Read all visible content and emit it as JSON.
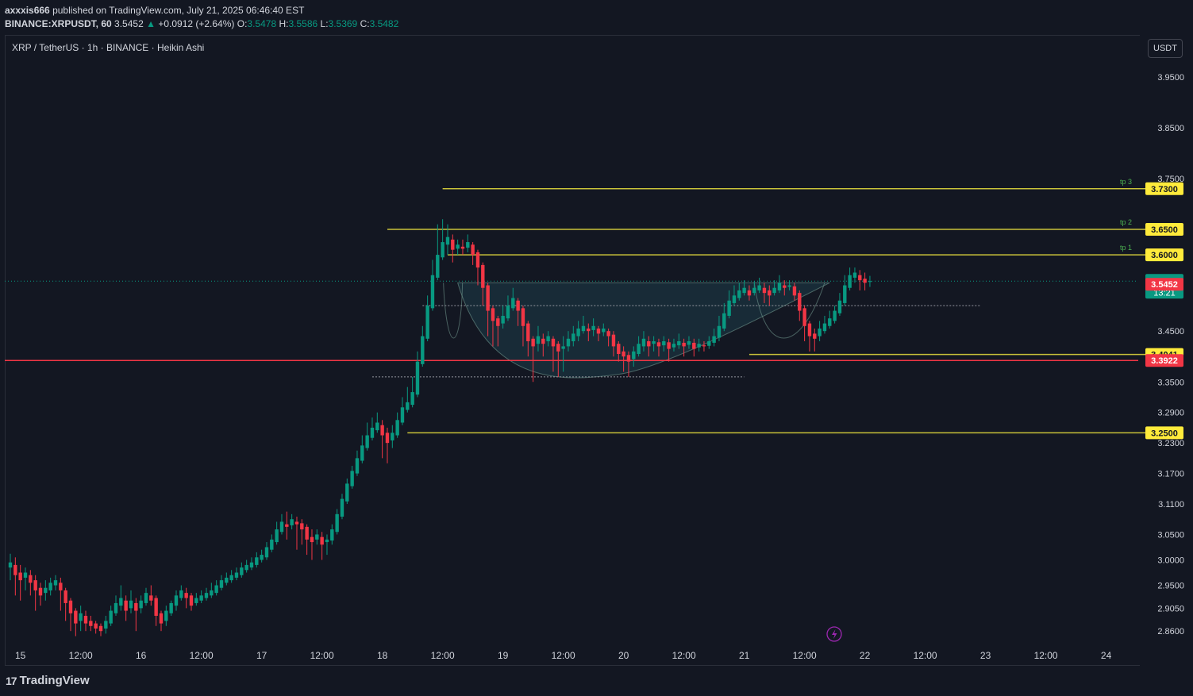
{
  "header": {
    "author": "axxxis666",
    "published_text": "published on TradingView.com, July 21, 2025 06:46:40 EST",
    "symbol": "BINANCE:XRPUSDT, 60",
    "last": "3.5452",
    "change_arrow": "▲",
    "change": "+0.0912 (+2.64%)",
    "o_label": "O:",
    "o": "3.5478",
    "h_label": "H:",
    "h": "3.5586",
    "l_label": "L:",
    "l": "3.5369",
    "c_label": "C:",
    "c": "3.5482"
  },
  "symbol_title": "XRP / TetherUS · 1h · BINANCE · Heikin Ashi",
  "currency_button": "USDT",
  "footer": {
    "logo_mark": "17",
    "brand": "TradingView"
  },
  "lightning_icon": "lightning-icon",
  "colors": {
    "up": "#089981",
    "down": "#f23645",
    "level": "#c9c23a",
    "support": "#f23645",
    "badge_yellow": "#ffeb3b",
    "current": "#089981"
  },
  "chart_data": {
    "type": "candlestick",
    "style": "Heikin Ashi",
    "y_range": [
      2.84,
      4.02
    ],
    "y_ticks": [
      "3.9500",
      "3.8500",
      "3.7500",
      "3.4500",
      "3.3500",
      "3.2900",
      "3.2300",
      "3.1700",
      "3.1100",
      "3.0500",
      "3.0000",
      "2.9500",
      "2.9050",
      "2.8600"
    ],
    "x_ticks": [
      {
        "label": "15",
        "slot": 2
      },
      {
        "label": "12:00",
        "slot": 14
      },
      {
        "label": "16",
        "slot": 26
      },
      {
        "label": "12:00",
        "slot": 38
      },
      {
        "label": "17",
        "slot": 50
      },
      {
        "label": "12:00",
        "slot": 62
      },
      {
        "label": "18",
        "slot": 74
      },
      {
        "label": "12:00",
        "slot": 86
      },
      {
        "label": "19",
        "slot": 98
      },
      {
        "label": "12:00",
        "slot": 110
      },
      {
        "label": "20",
        "slot": 122
      },
      {
        "label": "12:00",
        "slot": 134
      },
      {
        "label": "21",
        "slot": 146
      },
      {
        "label": "12:00",
        "slot": 158
      },
      {
        "label": "22",
        "slot": 170
      },
      {
        "label": "12:00",
        "slot": 182
      },
      {
        "label": "23",
        "slot": 194
      },
      {
        "label": "12:00",
        "slot": 206
      },
      {
        "label": "24",
        "slot": 218
      }
    ],
    "levels": [
      {
        "price": 3.73,
        "label": "3.7300",
        "tag": "tp 3",
        "from_slot": 86,
        "color": "#c9c23a"
      },
      {
        "price": 3.65,
        "label": "3.6500",
        "tag": "tp 2",
        "from_slot": 75,
        "color": "#c9c23a"
      },
      {
        "price": 3.6,
        "label": "3.6000",
        "tag": "tp 1",
        "from_slot": 87,
        "color": "#c9c23a"
      },
      {
        "price": 3.4041,
        "label": "3.4041",
        "tag": "",
        "from_slot": 147,
        "color": "#c9c23a"
      },
      {
        "price": 3.25,
        "label": "3.2500",
        "tag": "",
        "from_slot": 79,
        "color": "#c9c23a"
      }
    ],
    "support_line": {
      "price": 3.3922,
      "label": "3.3922",
      "color": "#f23645"
    },
    "current_price": {
      "price": 3.5482,
      "label": "3.5482",
      "countdown": "13:21"
    },
    "last_close": {
      "price": 3.5452,
      "label": "3.5452"
    },
    "dotted_lines": [
      {
        "price": 3.5,
        "from_slot": 82,
        "to_slot": 193
      },
      {
        "price": 3.36,
        "from_slot": 72,
        "to_slot": 146
      }
    ],
    "cup": {
      "rim_price": 3.545,
      "left_slot": 89,
      "right_slot": 163,
      "bottom_price": 3.365,
      "bottom_slot": 121
    },
    "candles": [
      [
        2.985,
        2.995,
        3.012,
        2.96
      ],
      [
        2.99,
        2.97,
        3.005,
        2.93
      ],
      [
        2.975,
        2.96,
        2.99,
        2.92
      ],
      [
        2.965,
        2.975,
        2.985,
        2.94
      ],
      [
        2.97,
        2.955,
        2.98,
        2.93
      ],
      [
        2.96,
        2.94,
        2.97,
        2.9
      ],
      [
        2.945,
        2.93,
        2.955,
        2.91
      ],
      [
        2.935,
        2.945,
        2.96,
        2.92
      ],
      [
        2.94,
        2.955,
        2.965,
        2.93
      ],
      [
        2.95,
        2.96,
        2.97,
        2.94
      ],
      [
        2.955,
        2.94,
        2.965,
        2.9
      ],
      [
        2.94,
        2.915,
        2.945,
        2.88
      ],
      [
        2.92,
        2.895,
        2.925,
        2.86
      ],
      [
        2.9,
        2.875,
        2.905,
        2.85
      ],
      [
        2.88,
        2.895,
        2.91,
        2.86
      ],
      [
        2.89,
        2.875,
        2.9,
        2.86
      ],
      [
        2.88,
        2.87,
        2.89,
        2.86
      ],
      [
        2.875,
        2.865,
        2.88,
        2.855
      ],
      [
        2.87,
        2.86,
        2.875,
        2.85
      ],
      [
        2.865,
        2.88,
        2.89,
        2.855
      ],
      [
        2.875,
        2.9,
        2.91,
        2.87
      ],
      [
        2.895,
        2.915,
        2.93,
        2.89
      ],
      [
        2.91,
        2.925,
        2.95,
        2.9
      ],
      [
        2.92,
        2.9,
        2.93,
        2.88
      ],
      [
        2.905,
        2.92,
        2.94,
        2.895
      ],
      [
        2.915,
        2.9,
        2.925,
        2.86
      ],
      [
        2.905,
        2.92,
        2.93,
        2.895
      ],
      [
        2.915,
        2.935,
        2.945,
        2.91
      ],
      [
        2.93,
        2.92,
        2.95,
        2.91
      ],
      [
        2.925,
        2.89,
        2.93,
        2.87
      ],
      [
        2.895,
        2.875,
        2.9,
        2.86
      ],
      [
        2.88,
        2.9,
        2.91,
        2.87
      ],
      [
        2.895,
        2.915,
        2.92,
        2.89
      ],
      [
        2.91,
        2.93,
        2.94,
        2.9
      ],
      [
        2.925,
        2.94,
        2.95,
        2.92
      ],
      [
        2.935,
        2.925,
        2.945,
        2.905
      ],
      [
        2.93,
        2.91,
        2.935,
        2.9
      ],
      [
        2.915,
        2.925,
        2.935,
        2.91
      ],
      [
        2.92,
        2.93,
        2.94,
        2.915
      ],
      [
        2.925,
        2.935,
        2.945,
        2.92
      ],
      [
        2.93,
        2.94,
        2.955,
        2.925
      ],
      [
        2.935,
        2.95,
        2.96,
        2.93
      ],
      [
        2.945,
        2.96,
        2.97,
        2.94
      ],
      [
        2.955,
        2.965,
        2.975,
        2.95
      ],
      [
        2.96,
        2.97,
        2.98,
        2.955
      ],
      [
        2.965,
        2.975,
        2.985,
        2.96
      ],
      [
        2.97,
        2.985,
        2.995,
        2.965
      ],
      [
        2.98,
        2.99,
        3.0,
        2.975
      ],
      [
        2.985,
        2.995,
        3.005,
        2.98
      ],
      [
        2.99,
        3.005,
        3.015,
        2.985
      ],
      [
        3.0,
        3.01,
        3.02,
        2.995
      ],
      [
        3.005,
        3.025,
        3.035,
        3.0
      ],
      [
        3.02,
        3.04,
        3.05,
        3.015
      ],
      [
        3.035,
        3.06,
        3.075,
        3.03
      ],
      [
        3.055,
        3.075,
        3.09,
        3.05
      ],
      [
        3.07,
        3.065,
        3.095,
        3.04
      ],
      [
        3.068,
        3.08,
        3.09,
        3.06
      ],
      [
        3.075,
        3.07,
        3.085,
        3.02
      ],
      [
        3.072,
        3.06,
        3.08,
        3.03
      ],
      [
        3.065,
        3.04,
        3.07,
        3.01
      ],
      [
        3.045,
        3.035,
        3.06,
        3.0
      ],
      [
        3.04,
        3.05,
        3.06,
        3.03
      ],
      [
        3.045,
        3.03,
        3.055,
        3.0
      ],
      [
        3.035,
        3.04,
        3.05,
        3.01
      ],
      [
        3.038,
        3.06,
        3.07,
        3.03
      ],
      [
        3.055,
        3.09,
        3.1,
        3.05
      ],
      [
        3.085,
        3.12,
        3.13,
        3.08
      ],
      [
        3.115,
        3.15,
        3.16,
        3.11
      ],
      [
        3.145,
        3.175,
        3.185,
        3.14
      ],
      [
        3.17,
        3.2,
        3.215,
        3.165
      ],
      [
        3.195,
        3.225,
        3.245,
        3.19
      ],
      [
        3.22,
        3.245,
        3.27,
        3.215
      ],
      [
        3.24,
        3.26,
        3.28,
        3.235
      ],
      [
        3.255,
        3.27,
        3.29,
        3.25
      ],
      [
        3.265,
        3.245,
        3.275,
        3.2
      ],
      [
        3.25,
        3.23,
        3.26,
        3.19
      ],
      [
        3.235,
        3.25,
        3.265,
        3.22
      ],
      [
        3.245,
        3.275,
        3.29,
        3.24
      ],
      [
        3.27,
        3.3,
        3.32,
        3.265
      ],
      [
        3.295,
        3.31,
        3.34,
        3.29
      ],
      [
        3.305,
        3.33,
        3.36,
        3.3
      ],
      [
        3.325,
        3.39,
        3.41,
        3.32
      ],
      [
        3.385,
        3.44,
        3.46,
        3.38
      ],
      [
        3.435,
        3.5,
        3.52,
        3.43
      ],
      [
        3.495,
        3.56,
        3.59,
        3.49
      ],
      [
        3.555,
        3.6,
        3.66,
        3.55
      ],
      [
        3.595,
        3.625,
        3.67,
        3.59
      ],
      [
        3.62,
        3.635,
        3.66,
        3.6
      ],
      [
        3.63,
        3.61,
        3.64,
        3.585
      ],
      [
        3.612,
        3.62,
        3.63,
        3.6
      ],
      [
        3.616,
        3.612,
        3.63,
        3.6
      ],
      [
        3.614,
        3.625,
        3.64,
        3.605
      ],
      [
        3.62,
        3.6,
        3.625,
        3.58
      ],
      [
        3.605,
        3.575,
        3.61,
        3.54
      ],
      [
        3.58,
        3.535,
        3.585,
        3.5
      ],
      [
        3.54,
        3.49,
        3.545,
        3.44
      ],
      [
        3.495,
        3.47,
        3.5,
        3.42
      ],
      [
        3.475,
        3.46,
        3.48,
        3.42
      ],
      [
        3.465,
        3.48,
        3.5,
        3.455
      ],
      [
        3.475,
        3.5,
        3.52,
        3.47
      ],
      [
        3.495,
        3.515,
        3.535,
        3.49
      ],
      [
        3.51,
        3.49,
        3.515,
        3.46
      ],
      [
        3.495,
        3.46,
        3.5,
        3.42
      ],
      [
        3.465,
        3.43,
        3.47,
        3.4
      ],
      [
        3.435,
        3.42,
        3.44,
        3.35
      ],
      [
        3.425,
        3.44,
        3.46,
        3.41
      ],
      [
        3.435,
        3.425,
        3.445,
        3.4
      ],
      [
        3.43,
        3.44,
        3.45,
        3.42
      ],
      [
        3.435,
        3.42,
        3.44,
        3.37
      ],
      [
        3.425,
        3.41,
        3.43,
        3.36
      ],
      [
        3.415,
        3.42,
        3.44,
        3.37
      ],
      [
        3.42,
        3.435,
        3.45,
        3.41
      ],
      [
        3.43,
        3.445,
        3.46,
        3.42
      ],
      [
        3.44,
        3.455,
        3.47,
        3.43
      ],
      [
        3.45,
        3.46,
        3.48,
        3.445
      ],
      [
        3.455,
        3.45,
        3.465,
        3.43
      ],
      [
        3.452,
        3.46,
        3.475,
        3.44
      ],
      [
        3.455,
        3.445,
        3.46,
        3.43
      ],
      [
        3.448,
        3.455,
        3.465,
        3.44
      ],
      [
        3.45,
        3.44,
        3.455,
        3.42
      ],
      [
        3.443,
        3.42,
        3.45,
        3.4
      ],
      [
        3.425,
        3.405,
        3.43,
        3.39
      ],
      [
        3.41,
        3.4,
        3.42,
        3.37
      ],
      [
        3.403,
        3.39,
        3.41,
        3.36
      ],
      [
        3.395,
        3.41,
        3.42,
        3.38
      ],
      [
        3.405,
        3.425,
        3.44,
        3.4
      ],
      [
        3.42,
        3.435,
        3.45,
        3.41
      ],
      [
        3.43,
        3.42,
        3.44,
        3.4
      ],
      [
        3.425,
        3.43,
        3.44,
        3.41
      ],
      [
        3.428,
        3.42,
        3.435,
        3.4
      ],
      [
        3.422,
        3.43,
        3.44,
        3.41
      ],
      [
        3.428,
        3.415,
        3.435,
        3.39
      ],
      [
        3.418,
        3.425,
        3.435,
        3.41
      ],
      [
        3.422,
        3.43,
        3.445,
        3.415
      ],
      [
        3.427,
        3.42,
        3.435,
        3.4
      ],
      [
        3.423,
        3.43,
        3.44,
        3.415
      ],
      [
        3.427,
        3.415,
        3.435,
        3.4
      ],
      [
        3.418,
        3.425,
        3.435,
        3.41
      ],
      [
        3.422,
        3.42,
        3.43,
        3.41
      ],
      [
        3.421,
        3.43,
        3.44,
        3.415
      ],
      [
        3.427,
        3.44,
        3.455,
        3.42
      ],
      [
        3.437,
        3.46,
        3.48,
        3.43
      ],
      [
        3.455,
        3.485,
        3.505,
        3.45
      ],
      [
        3.48,
        3.51,
        3.53,
        3.475
      ],
      [
        3.505,
        3.52,
        3.54,
        3.5
      ],
      [
        3.515,
        3.53,
        3.545,
        3.51
      ],
      [
        3.525,
        3.535,
        3.55,
        3.52
      ],
      [
        3.53,
        3.52,
        3.54,
        3.51
      ],
      [
        3.525,
        3.535,
        3.548,
        3.52
      ],
      [
        3.53,
        3.54,
        3.555,
        3.525
      ],
      [
        3.535,
        3.525,
        3.545,
        3.505
      ],
      [
        3.53,
        3.52,
        3.54,
        3.5
      ],
      [
        3.525,
        3.535,
        3.55,
        3.52
      ],
      [
        3.53,
        3.545,
        3.56,
        3.525
      ],
      [
        3.54,
        3.535,
        3.55,
        3.52
      ],
      [
        3.537,
        3.54,
        3.55,
        3.53
      ],
      [
        3.538,
        3.52,
        3.545,
        3.51
      ],
      [
        3.525,
        3.49,
        3.53,
        3.47
      ],
      [
        3.495,
        3.46,
        3.5,
        3.43
      ],
      [
        3.465,
        3.44,
        3.47,
        3.41
      ],
      [
        3.445,
        3.435,
        3.455,
        3.41
      ],
      [
        3.44,
        3.455,
        3.47,
        3.43
      ],
      [
        3.45,
        3.465,
        3.48,
        3.445
      ],
      [
        3.46,
        3.475,
        3.49,
        3.455
      ],
      [
        3.47,
        3.49,
        3.5,
        3.465
      ],
      [
        3.485,
        3.51,
        3.525,
        3.48
      ],
      [
        3.505,
        3.54,
        3.56,
        3.5
      ],
      [
        3.535,
        3.56,
        3.575,
        3.53
      ],
      [
        3.555,
        3.565,
        3.575,
        3.545
      ],
      [
        3.56,
        3.55,
        3.57,
        3.53
      ],
      [
        3.553,
        3.545,
        3.565,
        3.53
      ],
      [
        3.5478,
        3.5482,
        3.5586,
        3.5369
      ]
    ]
  }
}
